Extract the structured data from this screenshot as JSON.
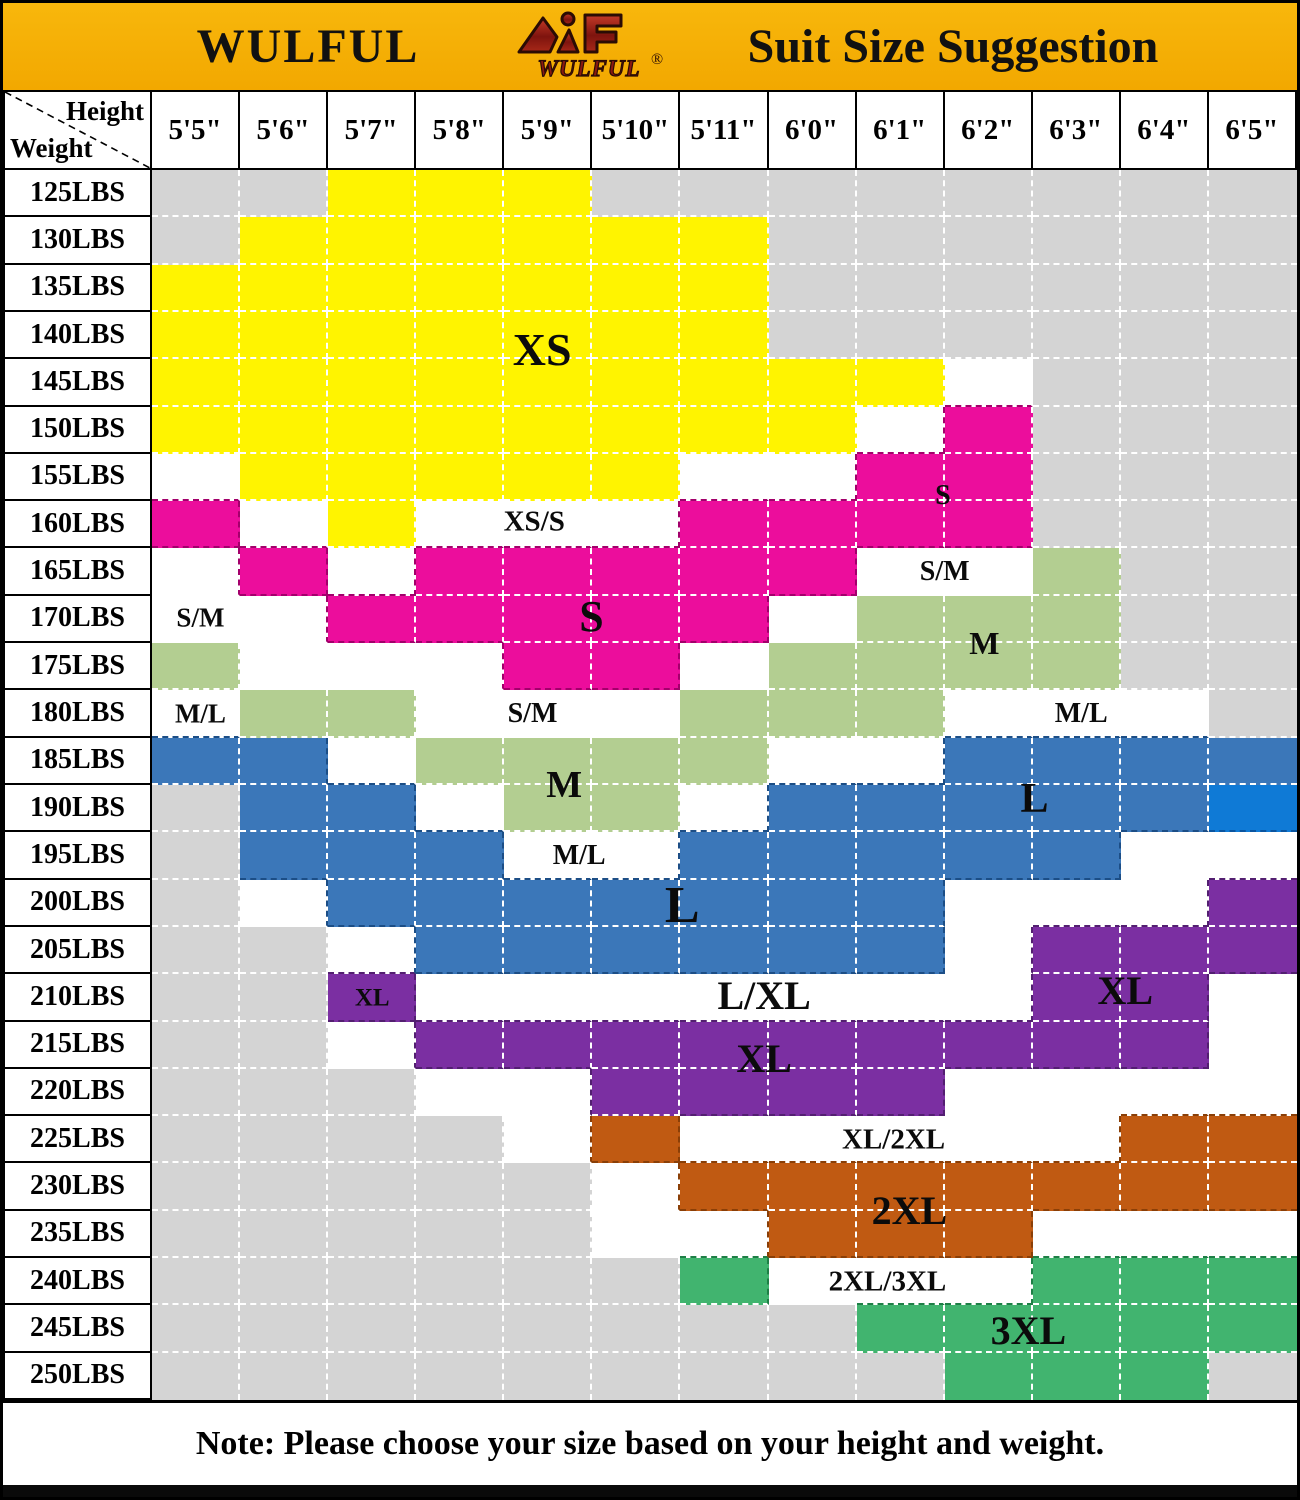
{
  "banner": {
    "brand": "WULFUL",
    "title": "Suit Size Suggestion",
    "logo_text": "WULFUL",
    "logo_reg": "®",
    "bg_color": "#F5AD00"
  },
  "corner": {
    "top": "Height",
    "bottom": "Weight"
  },
  "note": "Note: Please choose your size based on your height and weight.",
  "colors": {
    "fill": {
      "G": "#D4D4D4",
      "Y": "#FFF400",
      "W": "#FFFFFF",
      "P": "#EC0D9C",
      "M": "#B3CE91",
      "B": "#3B77B9",
      "C": "#0F7AD6",
      "X": "#7B2FA2",
      "O": "#C05A12",
      "T": "#41B46F"
    },
    "edge_dark": {
      "P": "#A3006B",
      "B": "#1C4E86",
      "C": "#0A55A0",
      "X": "#531F71",
      "O": "#8A3F07",
      "T": "#1E7F46"
    },
    "grid_line": "#FFFFFF",
    "banner_bg": "#F5AD00"
  },
  "chart_data": {
    "type": "heatmap",
    "title": "WULFUL Suit Size Suggestion",
    "x_label": "Height",
    "y_label": "Weight",
    "columns": [
      "5'5\"",
      "5'6\"",
      "5'7\"",
      "5'8\"",
      "5'9\"",
      "5'10\"",
      "5'11\"",
      "6'0\"",
      "6'1\"",
      "6'2\"",
      "6'3\"",
      "6'4\"",
      "6'5\""
    ],
    "rows": [
      "125LBS",
      "130LBS",
      "135LBS",
      "140LBS",
      "145LBS",
      "150LBS",
      "155LBS",
      "160LBS",
      "165LBS",
      "170LBS",
      "175LBS",
      "180LBS",
      "185LBS",
      "190LBS",
      "195LBS",
      "200LBS",
      "205LBS",
      "210LBS",
      "215LBS",
      "220LBS",
      "225LBS",
      "230LBS",
      "235LBS",
      "240LBS",
      "245LBS",
      "250LBS"
    ],
    "code_meanings": {
      "Y": "XS",
      "P": "S",
      "M": "M",
      "B": "L",
      "C": "L",
      "X": "XL",
      "O": "2XL",
      "T": "3XL",
      "W": "between sizes",
      "G": "no suggestion"
    },
    "matrix": [
      "GGYYYGGGGGGGG",
      "GYYYYYYGGGGGG",
      "YYYYYYYGGGGGG",
      "YYYYYYYGGGGGG",
      "YYYYYYYYYWGGG",
      "YYYYYYYYWPGGG",
      "WYYYYYWWPPGGG",
      "PWYWWWPPPPGGG",
      "WPWPPPPPWWMGG",
      "WWPPPPPWMMMGG",
      "MWWWPPWMMMMGG",
      "WMMWWWMMMWWWG",
      "BBWMMMMWWBBBB",
      "GBBWMMWBBBBBC",
      "GBBBWWBBBBBWW",
      "GWBBBBBBBWWWX",
      "GGWBBBBBBWXXX",
      "GGXWWWWWWWXXW",
      "GGWXXXXXXXXXW",
      "GGGWWXXXXWWWW",
      "GGGGWOWWWWWOO",
      "GGGGGWOOOOOOO",
      "GGGGGWWOOOWWW",
      "GGGGGGTWWWTTT",
      "GGGGGGGGTTTTT",
      "GGGGGGGGGTTTG"
    ],
    "overlay_labels": [
      {
        "text": "XS",
        "col": 4.43,
        "row": 3.81,
        "size": 46
      },
      {
        "text": "XS/S",
        "col": 4.34,
        "row": 7.45,
        "size": 29
      },
      {
        "text": "S",
        "col": 8.98,
        "row": 6.9,
        "size": 28
      },
      {
        "text": "S/M",
        "col": 9.0,
        "row": 8.5,
        "size": 28
      },
      {
        "text": "S",
        "col": 4.99,
        "row": 9.45,
        "size": 44
      },
      {
        "text": "S/M",
        "col": 0.55,
        "row": 9.48,
        "size": 27
      },
      {
        "text": "M",
        "col": 9.45,
        "row": 10.0,
        "size": 32
      },
      {
        "text": "M/L",
        "col": 0.55,
        "row": 11.5,
        "size": 27
      },
      {
        "text": "S/M",
        "col": 4.32,
        "row": 11.5,
        "size": 28
      },
      {
        "text": "M/L",
        "col": 10.55,
        "row": 11.5,
        "size": 28
      },
      {
        "text": "M",
        "col": 4.68,
        "row": 13.0,
        "size": 38
      },
      {
        "text": "L",
        "col": 10.02,
        "row": 13.3,
        "size": 42
      },
      {
        "text": "M/L",
        "col": 4.85,
        "row": 14.5,
        "size": 28
      },
      {
        "text": "L",
        "col": 6.02,
        "row": 15.55,
        "size": 52
      },
      {
        "text": "XL",
        "col": 2.5,
        "row": 17.5,
        "size": 25
      },
      {
        "text": "L/XL",
        "col": 6.95,
        "row": 17.45,
        "size": 40
      },
      {
        "text": "XL",
        "col": 11.05,
        "row": 17.35,
        "size": 40
      },
      {
        "text": "XL",
        "col": 6.95,
        "row": 18.8,
        "size": 40
      },
      {
        "text": "XL/2XL",
        "col": 8.42,
        "row": 20.5,
        "size": 29
      },
      {
        "text": "2XL",
        "col": 8.6,
        "row": 22.0,
        "size": 40
      },
      {
        "text": "2XL/3XL",
        "col": 8.35,
        "row": 23.5,
        "size": 29
      },
      {
        "text": "3XL",
        "col": 9.95,
        "row": 24.55,
        "size": 40
      }
    ],
    "legend_position": "none",
    "grid": "dashed-white"
  }
}
